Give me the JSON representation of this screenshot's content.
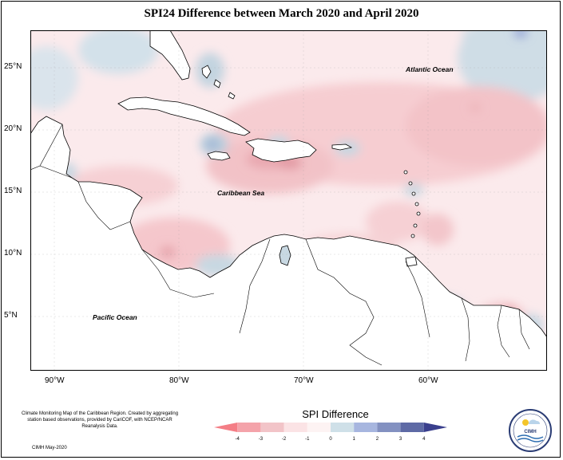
{
  "title": "SPI24 Difference between March 2020 and April 2020",
  "lat_labels": [
    {
      "text": "25°N",
      "lat": 25
    },
    {
      "text": "20°N",
      "lat": 20
    },
    {
      "text": "15°N",
      "lat": 15
    },
    {
      "text": "10°N",
      "lat": 10
    },
    {
      "text": "5°N",
      "lat": 5
    }
  ],
  "lon_labels": [
    {
      "text": "90°W",
      "lon": -90
    },
    {
      "text": "80°W",
      "lon": -80
    },
    {
      "text": "70°W",
      "lon": -70
    },
    {
      "text": "60°W",
      "lon": -60
    }
  ],
  "map_labels": {
    "atlantic": "Atlantic Ocean",
    "caribbean": "Caribbean Sea",
    "pacific": "Pacific Ocean"
  },
  "legend": {
    "title": "SPI Difference",
    "ticks": [
      "-4",
      "-3",
      "-2",
      "-1",
      "0",
      "1",
      "2",
      "3",
      "4"
    ],
    "colors": [
      "#f47e86",
      "#f4a3aa",
      "#f2c4c8",
      "#fbe3e5",
      "#fdf3f3",
      "#cfe0e8",
      "#a7b6df",
      "#8391c1",
      "#5e6aa5",
      "#3a3f8d"
    ]
  },
  "footer": {
    "note": "Climate Monitoring Map of the Caribbean Region. Created by aggregating station based observations, provided by CariCOF, with NCEP/NCAR Reanalysis Data.",
    "date": "CIMH May-2020",
    "logo_text": "CIMH"
  }
}
